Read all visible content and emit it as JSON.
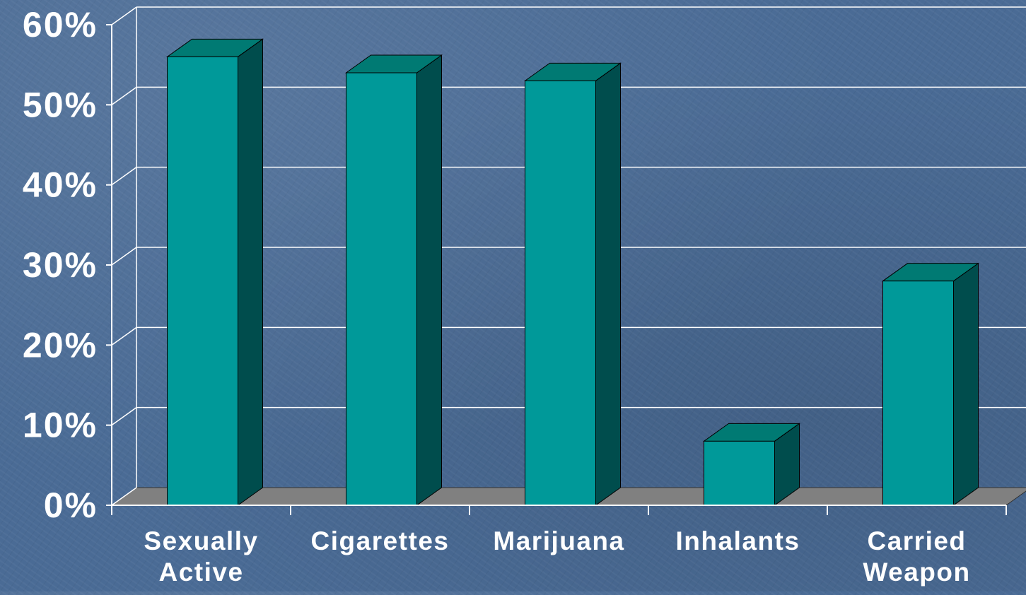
{
  "chart_data": {
    "type": "bar",
    "title": "",
    "xlabel": "",
    "ylabel": "",
    "categories": [
      [
        "Sexually",
        "Active"
      ],
      [
        "Cigarettes"
      ],
      [
        "Marijuana"
      ],
      [
        "Inhalants"
      ],
      [
        "Carried",
        "Weapon"
      ]
    ],
    "values": [
      56,
      54,
      53,
      8,
      28
    ],
    "ylim": [
      0,
      60
    ],
    "yticks": [
      0,
      10,
      20,
      30,
      40,
      50,
      60
    ],
    "ytick_labels": [
      "0%",
      "10%",
      "20%",
      "30%",
      "40%",
      "50%",
      "60%"
    ],
    "grid": true,
    "style": "3d-bar"
  },
  "colors": {
    "bar_front": "#009999",
    "bar_top": "#007a73",
    "bar_side": "#004d4d",
    "floor": "#808080",
    "grid": "#ffffff",
    "text": "#ffffff",
    "background": "#4a6b95"
  }
}
